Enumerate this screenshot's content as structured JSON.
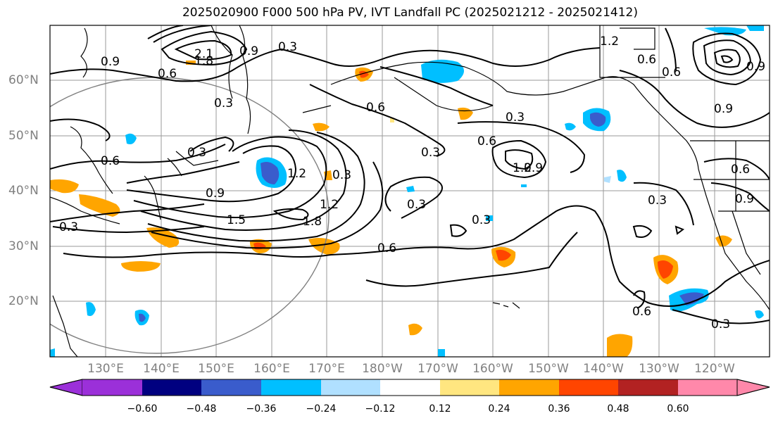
{
  "title": "2025020900 F000 500 hPa PV, IVT Landfall PC (2025021212 - 2025021412)",
  "lat_labels": [
    "60°N",
    "50°N",
    "40°N",
    "30°N",
    "20°N"
  ],
  "lon_labels": [
    "130°E",
    "140°E",
    "150°E",
    "160°E",
    "170°E",
    "180°W",
    "170°W",
    "160°W",
    "150°W",
    "140°W",
    "130°W",
    "120°W"
  ],
  "contour_labels": [
    "0.9",
    "2.1",
    "1.8",
    "0.9",
    "0.3",
    "0.6",
    "0.3",
    "0.6",
    "0.3",
    "0.6",
    "0.3",
    "0.9",
    "1.5",
    "1.8",
    "1.2",
    "0.3",
    "1.2",
    "0.3",
    "0.6",
    "0.3",
    "0.6",
    "0.3",
    "0.6",
    "1.2",
    "0.9",
    "0.3",
    "0.6",
    "0.3",
    "1.2",
    "0.9",
    "0.6",
    "0.9",
    "0.6",
    "0.9",
    "0.3"
  ],
  "colorbar": {
    "ticks": [
      "−0.60",
      "−0.48",
      "−0.36",
      "−0.24",
      "−0.12",
      "0.12",
      "0.24",
      "0.36",
      "0.48",
      "0.60"
    ],
    "colors": [
      "#9b30d9",
      "#000080",
      "#3a5ccc",
      "#00bfff",
      "#b0e0ff",
      "#ffffff",
      "#ffe680",
      "#ffa500",
      "#ff4500",
      "#b22222",
      "#ff88aa"
    ]
  }
}
